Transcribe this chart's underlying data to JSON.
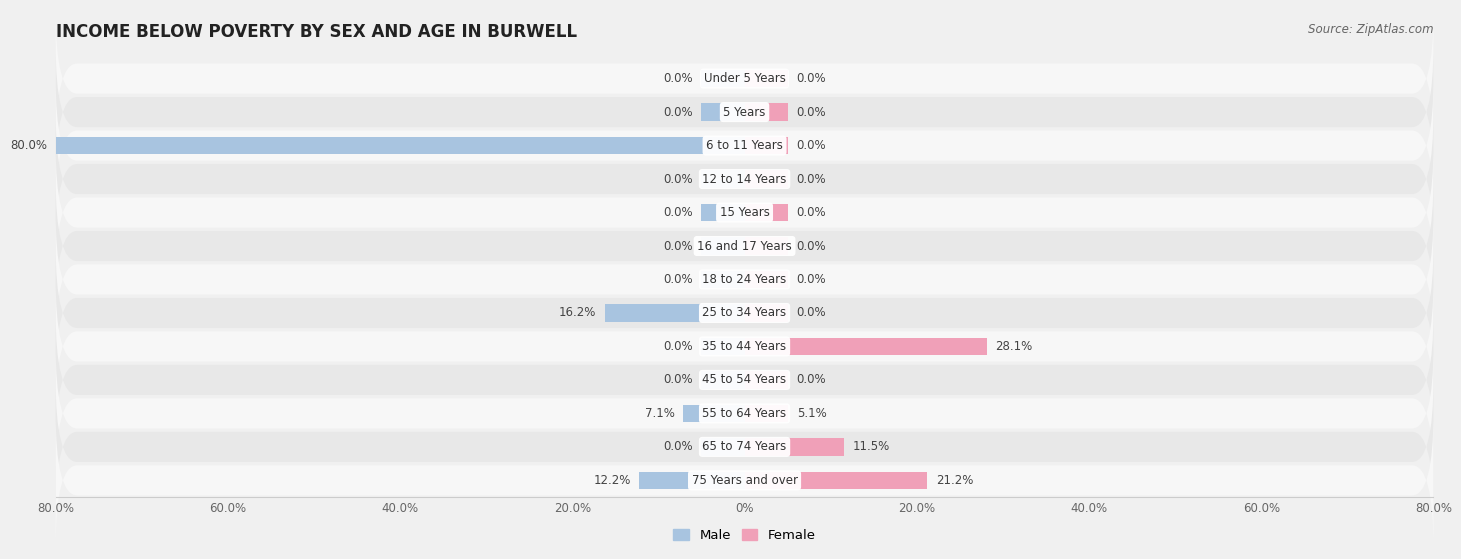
{
  "title": "INCOME BELOW POVERTY BY SEX AND AGE IN BURWELL",
  "source": "Source: ZipAtlas.com",
  "categories": [
    "Under 5 Years",
    "5 Years",
    "6 to 11 Years",
    "12 to 14 Years",
    "15 Years",
    "16 and 17 Years",
    "18 to 24 Years",
    "25 to 34 Years",
    "35 to 44 Years",
    "45 to 54 Years",
    "55 to 64 Years",
    "65 to 74 Years",
    "75 Years and over"
  ],
  "male_values": [
    0.0,
    0.0,
    80.0,
    0.0,
    0.0,
    0.0,
    0.0,
    16.2,
    0.0,
    0.0,
    7.1,
    0.0,
    12.2
  ],
  "female_values": [
    0.0,
    0.0,
    0.0,
    0.0,
    0.0,
    0.0,
    0.0,
    0.0,
    28.1,
    0.0,
    5.1,
    11.5,
    21.2
  ],
  "male_color": "#a8c4e0",
  "female_color": "#f0a0b8",
  "background_color": "#f0f0f0",
  "row_bg_light": "#f7f7f7",
  "row_bg_dark": "#e8e8e8",
  "xlim": 80.0,
  "min_bar": 5.0,
  "bar_height": 0.52,
  "title_fontsize": 12,
  "label_fontsize": 8.5,
  "cat_fontsize": 8.5,
  "tick_fontsize": 8.5,
  "source_fontsize": 8.5
}
